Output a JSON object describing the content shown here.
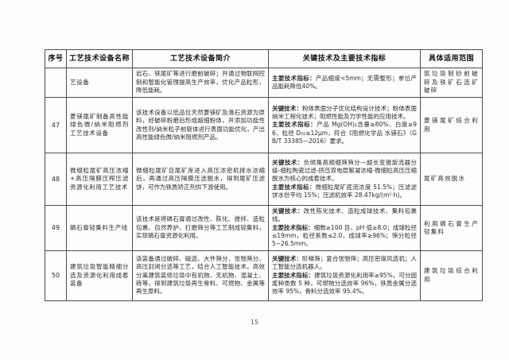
{
  "page": {
    "number": "15"
  },
  "table": {
    "headers": [
      "序号",
      "工艺技术设备名称",
      "工艺技术设备简介",
      "关键技术及主要技术指标",
      "具体适用范围"
    ],
    "rows": [
      {
        "id": "",
        "name": "艺设备",
        "intro": "岩石、铁尾矿等进行磨前破碎；并通过物联网控制和智能化管理提高生产效率，优化产品粒形，降低能耗。",
        "key": [
          {
            "label": "主要技术指标：",
            "text": "产品细度<5mm；无需整形；单位产品能耗降低40%。"
          },
          {
            "label": "",
            "text": ""
          }
        ],
        "scope": "筑垃圾制砂前破碎及铁矿石选矿破碎"
      },
      {
        "id": "47",
        "name": "菱镁尾矿制备高性能绿色微/纳米阻燃剂工艺技术设备",
        "intro": "该技术设备以低品位天然菱镁矿及滑石资源为原料，经破碎粉磨后形成超细粉体，并添加功能性改性剂/纳米粒子前驱体进行表面功能优化，产出高性能绿色微/纳米阻燃剂产品。",
        "key": [
          {
            "label": "关键技术：",
            "text": "粉体表面分子优化结构设计技术；粉体表面纳米工程化技术；阻燃性能及力学性能的应用技术。"
          },
          {
            "label": "主要技术指标：",
            "text": "产品 Mg(OH)₂含量≥80%、白度≥96、粒径 D₅₀≤12μm，符合《阻燃化学品 水镁石》（GB/T 33385—2016）要求。"
          }
        ],
        "scope": "菱镁尾矿综合利用"
      },
      {
        "id": "48",
        "name": "微细粒尾矿高压浓缩+高压隔膜压榨压滤资源化利用工艺技术",
        "intro": "微细粒尾矿自尾矿库进入高压浓密机排水浓缩后，再通过高压隔膜压滤脱水，得到尾矿压滤饼，可作为铁质矫正剂供下游使用。",
        "key": [
          {
            "label": "关键技术：",
            "text": "负倾角高频细筛筛分—超长变锥旋流器分级-细粒陶瓷过滤-挤压双电层絮凝浓缩-微细粒高压压缩脱水为核心的成套技术。"
          },
          {
            "label": "主要技术指标：",
            "text": "微细粒尾矿底流浓度 51.5%；压滤滤饼水份平均 15%；压滤机效率 28.47kg/(m²·h)。"
          }
        ],
        "scope": "尾矿高效脱水"
      },
      {
        "id": "49",
        "name": "磷石膏轻集料生产线",
        "intro": "该技术是将磷石膏通过改性、陈化、搅拌、造粒包裹、自然养护、打磨筛分等工艺制成轻集料，实现磷石膏资源化利用。",
        "key": [
          {
            "label": "关键技术：",
            "text": "改性陈化技术、造粒成球技术、集料包裹线。"
          },
          {
            "label": "主要技术指标：",
            "text": "细数≥100 目，pH 值≥8.0；成球粒径≤19mm，粒径系数≤2.0，成球率≥96%；筛分粒径 5~26.5mm。"
          }
        ],
        "scope": "利用磷石膏生产轻集料"
      },
      {
        "id": "50",
        "name": "建筑垃圾智能精细分选及资源化利用成套装备",
        "intro": "该装备通过破碎、磁选、大件筛分、张弛筛分、高压封闭分选等工艺，结合人工智能技术，高效分离建筑装修垃圾中有机物、无机物、混凝土、砖等，得到建筑垃圾再生骨料、可燃物、金属等再生原料。",
        "key": [
          {
            "label": "关键技术：",
            "text": "阶梯筛；复合张弛筛；高压密度风选机；人工智能分选机器人。"
          },
          {
            "label": "主要技术指标：",
            "text": "建筑垃圾资源化利用率≥95%，可分固废种类数 5 种，可燃物分选效率 96%，铁质金属分选效率 95%，骨料分选效率 95.4%。"
          }
        ],
        "scope": "建筑垃圾综合利用"
      }
    ]
  }
}
